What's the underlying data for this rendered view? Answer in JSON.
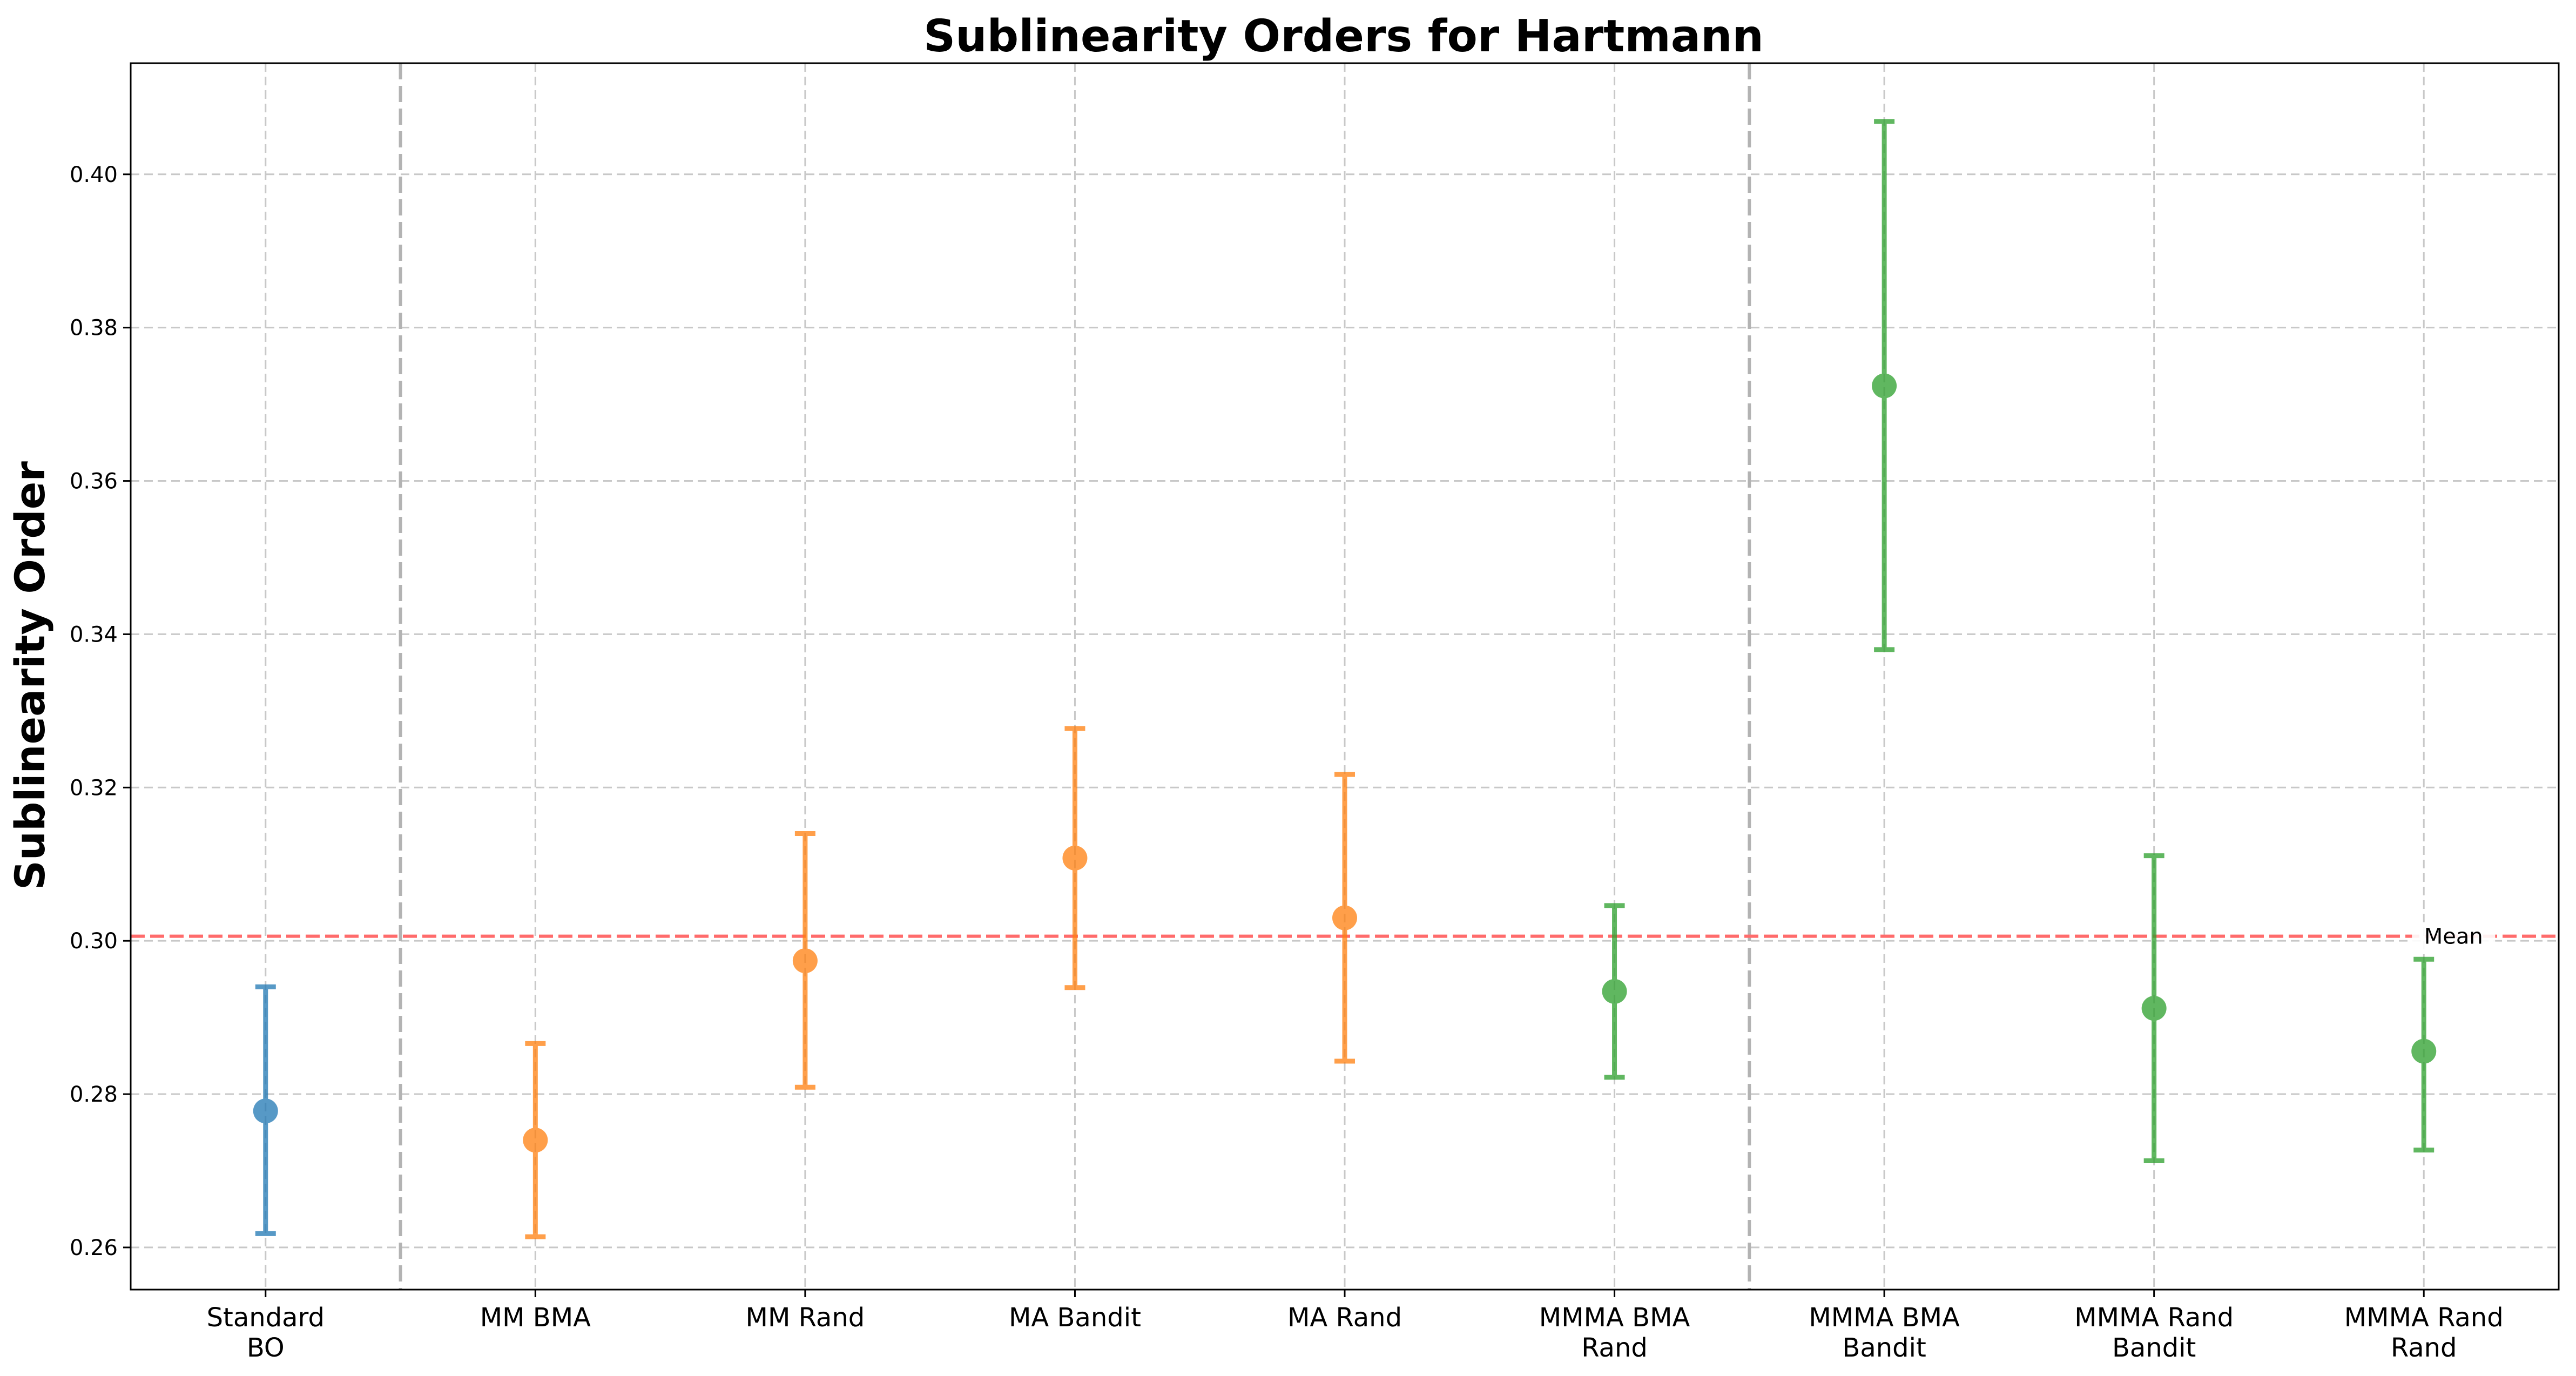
{
  "chart_data": {
    "type": "scatter",
    "title": "Sublinearity Orders for Hartmann",
    "xlabel": "",
    "ylabel": "Sublinearity Order",
    "ylim": [
      0.2545,
      0.4145
    ],
    "yticks": [
      0.26,
      0.28,
      0.3,
      0.32,
      0.34,
      0.36,
      0.38,
      0.4
    ],
    "ytick_labels": [
      "0.26",
      "0.28",
      "0.30",
      "0.32",
      "0.34",
      "0.36",
      "0.38",
      "0.40"
    ],
    "grid": true,
    "categories": [
      [
        "Standard",
        "BO"
      ],
      [
        "MM BMA"
      ],
      [
        "MM Rand"
      ],
      [
        "MA Bandit"
      ],
      [
        "MA Rand"
      ],
      [
        "MMMA BMA",
        "Rand"
      ],
      [
        "MMMA BMA",
        "Bandit"
      ],
      [
        "MMMA Rand",
        "Bandit"
      ],
      [
        "MMMA Rand",
        "Rand"
      ]
    ],
    "points": [
      {
        "mean": 0.2778,
        "lower": 0.2618,
        "upper": 0.294,
        "color": "#1f77b4"
      },
      {
        "mean": 0.274,
        "lower": 0.2614,
        "upper": 0.2866,
        "color": "#ff7f0e"
      },
      {
        "mean": 0.2974,
        "lower": 0.2809,
        "upper": 0.314,
        "color": "#ff7f0e"
      },
      {
        "mean": 0.3108,
        "lower": 0.2939,
        "upper": 0.3277,
        "color": "#ff7f0e"
      },
      {
        "mean": 0.303,
        "lower": 0.2843,
        "upper": 0.3217,
        "color": "#ff7f0e"
      },
      {
        "mean": 0.2934,
        "lower": 0.2822,
        "upper": 0.3046,
        "color": "#2ca02c"
      },
      {
        "mean": 0.3724,
        "lower": 0.338,
        "upper": 0.4069,
        "color": "#2ca02c"
      },
      {
        "mean": 0.2912,
        "lower": 0.2713,
        "upper": 0.3111,
        "color": "#2ca02c"
      },
      {
        "mean": 0.2856,
        "lower": 0.2727,
        "upper": 0.2976,
        "color": "#2ca02c"
      }
    ],
    "mean_line": {
      "value": 0.3006,
      "label": "Mean",
      "color": "#ff6b6b"
    },
    "group_dividers": [
      0.5,
      5.5
    ],
    "divider_color": "#b3b3b3",
    "grid_color": "#c8c8c8"
  }
}
